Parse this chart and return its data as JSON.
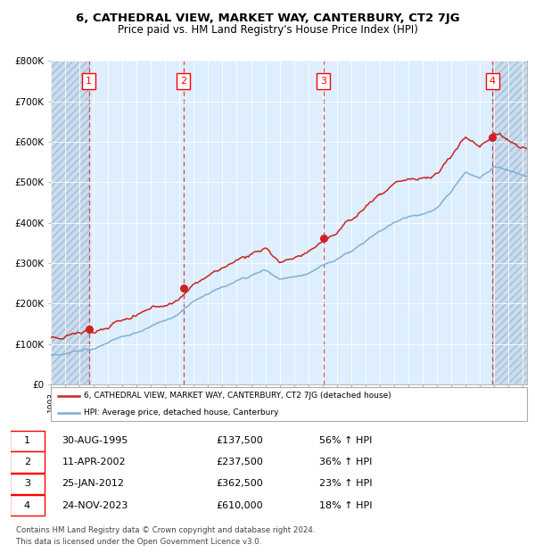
{
  "title": "6, CATHEDRAL VIEW, MARKET WAY, CANTERBURY, CT2 7JG",
  "subtitle": "Price paid vs. HM Land Registry's House Price Index (HPI)",
  "hpi_color": "#7aadd4",
  "price_color": "#cc2222",
  "dot_color": "#cc2222",
  "background_color": "#ddeeff",
  "hatch_bg_color": "#c8ddf0",
  "sale_dates_dec": [
    1995.664,
    2002.278,
    2012.069,
    2023.896
  ],
  "sale_prices": [
    137500,
    237500,
    362500,
    610000
  ],
  "sale_labels": [
    "1",
    "2",
    "3",
    "4"
  ],
  "sale_date_strs": [
    "30-AUG-1995",
    "11-APR-2002",
    "25-JAN-2012",
    "24-NOV-2023"
  ],
  "row_prices": [
    "£137,500",
    "£237,500",
    "£362,500",
    "£610,000"
  ],
  "row_pcts": [
    "56% ↑ HPI",
    "36% ↑ HPI",
    "23% ↑ HPI",
    "18% ↑ HPI"
  ],
  "ylim": [
    0,
    800000
  ],
  "yticks": [
    0,
    100000,
    200000,
    300000,
    400000,
    500000,
    600000,
    700000,
    800000
  ],
  "ytick_labels": [
    "£0",
    "£100K",
    "£200K",
    "£300K",
    "£400K",
    "£500K",
    "£600K",
    "£700K",
    "£800K"
  ],
  "xlim_start": 1993.0,
  "xlim_end": 2026.3,
  "legend_line1": "6, CATHEDRAL VIEW, MARKET WAY, CANTERBURY, CT2 7JG (detached house)",
  "legend_line2": "HPI: Average price, detached house, Canterbury",
  "footer1": "Contains HM Land Registry data © Crown copyright and database right 2024.",
  "footer2": "This data is licensed under the Open Government Licence v3.0."
}
